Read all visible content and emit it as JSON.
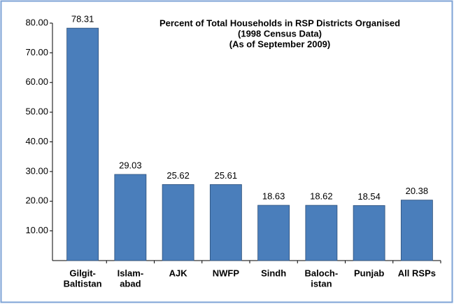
{
  "chart_data": {
    "type": "bar",
    "title": [
      "Percent of Total Households in RSP Districts Organised",
      "(1998 Census Data)",
      "(As of September 2009)"
    ],
    "categories": [
      [
        "Gilgit-",
        "Baltistan"
      ],
      [
        "Islam-",
        "abad"
      ],
      [
        "AJK"
      ],
      [
        "NWFP"
      ],
      [
        "Sindh"
      ],
      [
        "Baloch-",
        "istan"
      ],
      [
        "Punjab"
      ],
      [
        "All RSPs"
      ]
    ],
    "values": [
      78.31,
      29.03,
      25.62,
      25.61,
      18.63,
      18.62,
      18.54,
      20.38
    ],
    "color": "#4a7ebb",
    "ylim": [
      0,
      80
    ],
    "yticks": [
      {
        "value": 10,
        "label": "10.00"
      },
      {
        "value": 20,
        "label": "20.00"
      },
      {
        "value": 30,
        "label": "30.00"
      },
      {
        "value": 40,
        "label": "40.00"
      },
      {
        "value": 50,
        "label": "50.00"
      },
      {
        "value": 60,
        "label": "60.00"
      },
      {
        "value": 70,
        "label": "70.00"
      },
      {
        "value": 80,
        "label": "80.00"
      }
    ],
    "grid": false
  }
}
